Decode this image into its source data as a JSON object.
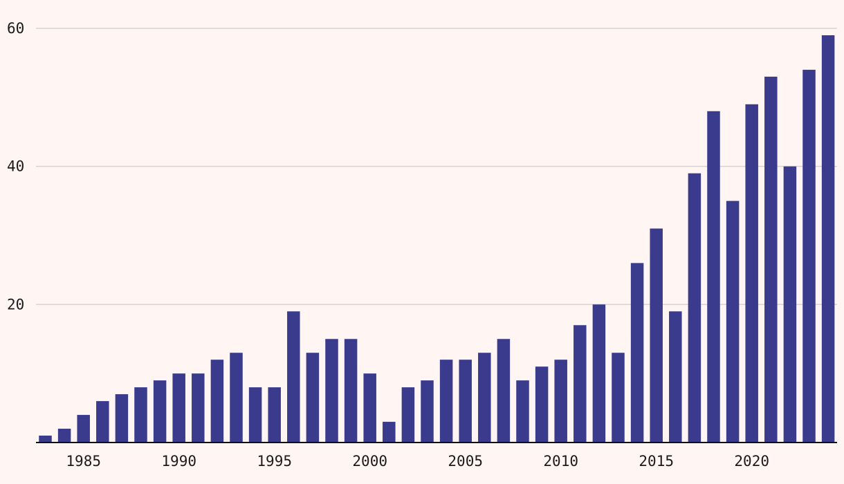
{
  "colors": {
    "background": "#fff6f4",
    "bar": "#3a3b8c",
    "grid": "#d9d2d2",
    "axis": "#111111",
    "text": "#1a1a1a"
  },
  "chart_data": {
    "type": "bar",
    "title": "",
    "xlabel": "",
    "ylabel": "",
    "grid": true,
    "legend": "none",
    "ylim": [
      0,
      60
    ],
    "y_ticks": [
      20,
      40,
      60
    ],
    "x_ticks": [
      "1985",
      "1990",
      "1995",
      "2000",
      "2005",
      "2010",
      "2015",
      "2020"
    ],
    "categories": [
      "1983",
      "1984",
      "1985",
      "1986",
      "1987",
      "1988",
      "1989",
      "1990",
      "1991",
      "1992",
      "1993",
      "1994",
      "1995",
      "1996",
      "1997",
      "1998",
      "1999",
      "2000",
      "2001",
      "2002",
      "2003",
      "2004",
      "2005",
      "2006",
      "2007",
      "2008",
      "2009",
      "2010",
      "2011",
      "2012",
      "2013",
      "2014",
      "2015",
      "2016",
      "2017",
      "2018",
      "2019",
      "2020",
      "2021",
      "2022",
      "2023",
      "2024"
    ],
    "values": [
      1,
      2,
      4,
      6,
      7,
      8,
      9,
      10,
      10,
      12,
      13,
      8,
      8,
      19,
      13,
      15,
      15,
      10,
      3,
      8,
      9,
      12,
      12,
      13,
      15,
      9,
      11,
      12,
      17,
      20,
      13,
      26,
      31,
      19,
      39,
      48,
      35,
      49,
      53,
      40,
      54,
      59
    ]
  }
}
